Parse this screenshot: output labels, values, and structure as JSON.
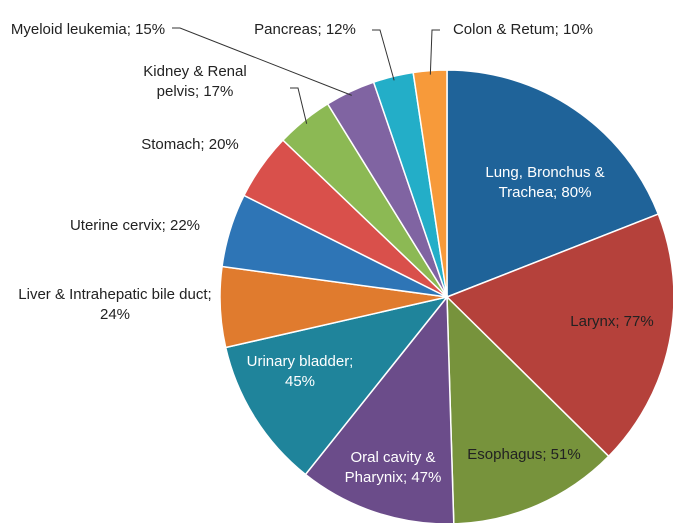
{
  "chart_data": {
    "type": "pie",
    "values": [
      80,
      77,
      51,
      47,
      45,
      24,
      22,
      20,
      17,
      15,
      12,
      10
    ],
    "value_labels": [
      "Lung, Bronchus & Trachea; 80%",
      "Larynx; 77%",
      "Esophagus; 51%",
      "Oral cavity & Pharynix; 47%",
      "Urinary bladder; 45%",
      "Liver & Intrahepatic bile duct; 24%",
      "Uterine cervix; 22%",
      "Stomach; 20%",
      "Kidney & Renal pelvis; 17%",
      "Myeloid leukemia; 15%",
      "Pancreas; 12%",
      "Colon & Retum; 10%"
    ],
    "colors": [
      "#1f6399",
      "#b5413b",
      "#77933c",
      "#6b4c8a",
      "#1f849b",
      "#e07b2e",
      "#2e75b6",
      "#d9504b",
      "#8cb954",
      "#8064a2",
      "#23aec8",
      "#f79a3a"
    ]
  }
}
